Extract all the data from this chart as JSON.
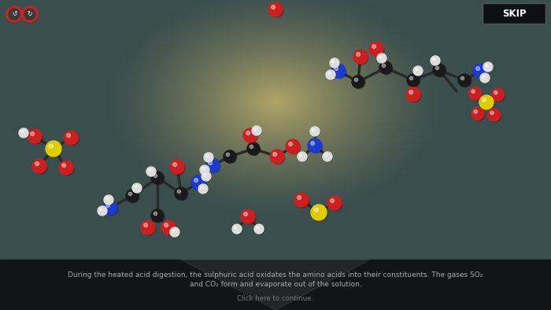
{
  "bg_outer": "#3a4e4e",
  "bg_center": "#b0a468",
  "panel_color": "#111518",
  "skip_bg": "#0d1115",
  "skip_border": "#444444",
  "skip_text": "#ffffff",
  "text_color": "#aaaaaa",
  "click_text_color": "#777777",
  "title_line1": "During the heated acid digestion, the sulphuric acid oxidates the amino acids into their constituents. The gases SO₂",
  "title_line2": "and CO₂ form and evaporate out of the solution.",
  "click_text": "Click here to continue.",
  "C": "#1a1a1a",
  "N": "#1a3bcc",
  "O": "#cc2020",
  "H": "#dddddd",
  "S": "#ddcc00",
  "bond_color": "#2a2a2a"
}
